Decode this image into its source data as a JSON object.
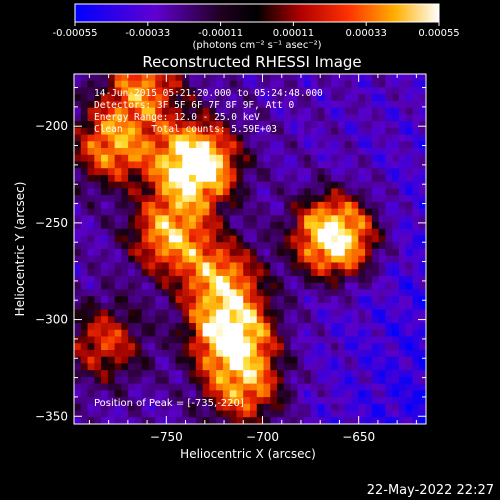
{
  "colorbar": {
    "ticks": [
      "-0.00055",
      "-0.00033",
      "-0.00011",
      "0.00011",
      "0.00033",
      "0.00055"
    ],
    "units": "(photons cm⁻² s⁻¹ asec⁻²)",
    "range": [
      -0.00055,
      0.00055
    ]
  },
  "chart_data": {
    "type": "heatmap",
    "title": "Reconstructed RHESSI Image",
    "xlabel": "Heliocentric X (arcsec)",
    "ylabel": "Heliocentric Y (arcsec)",
    "xlim": [
      -798,
      -615
    ],
    "ylim": [
      -354,
      -173
    ],
    "xticks": [
      -750,
      -700,
      -650
    ],
    "yticks": [
      -200,
      -250,
      -300,
      -350
    ],
    "annotations": [
      "14-Jun-2015 05:21:20.000 to 05:24:48.000",
      "Detectors: 3F 5F 6F 7F 8F 9F, Att 0",
      "Energy Range: 12.0 - 25.0 keV",
      "Clean     Total counts: 5.59E+03"
    ],
    "peak_label": "Position of Peak = [-735,-220]",
    "peak": [
      -735,
      -220
    ],
    "sources": [
      {
        "x": -735,
        "y": -220,
        "relative_intensity": 1.0
      },
      {
        "x": -663,
        "y": -257,
        "relative_intensity": 0.85
      },
      {
        "x": -716,
        "y": -308,
        "relative_intensity": 0.8
      },
      {
        "x": -748,
        "y": -256,
        "relative_intensity": 0.6
      },
      {
        "x": -722,
        "y": -280,
        "relative_intensity": 0.55
      },
      {
        "x": -778,
        "y": -210,
        "relative_intensity": 0.55
      },
      {
        "x": -762,
        "y": -180,
        "relative_intensity": 0.5
      },
      {
        "x": -710,
        "y": -335,
        "relative_intensity": 0.5
      },
      {
        "x": -782,
        "y": -312,
        "relative_intensity": 0.4
      }
    ],
    "pixel_grid": [
      52,
      52
    ]
  },
  "timestamp": "22-May-2022 22:27",
  "colors": {
    "background": "#000000",
    "colormap": [
      "#0000ff",
      "#7800c8",
      "#000000",
      "#b40000",
      "#ff5000",
      "#ffc800",
      "#ffffff"
    ]
  }
}
